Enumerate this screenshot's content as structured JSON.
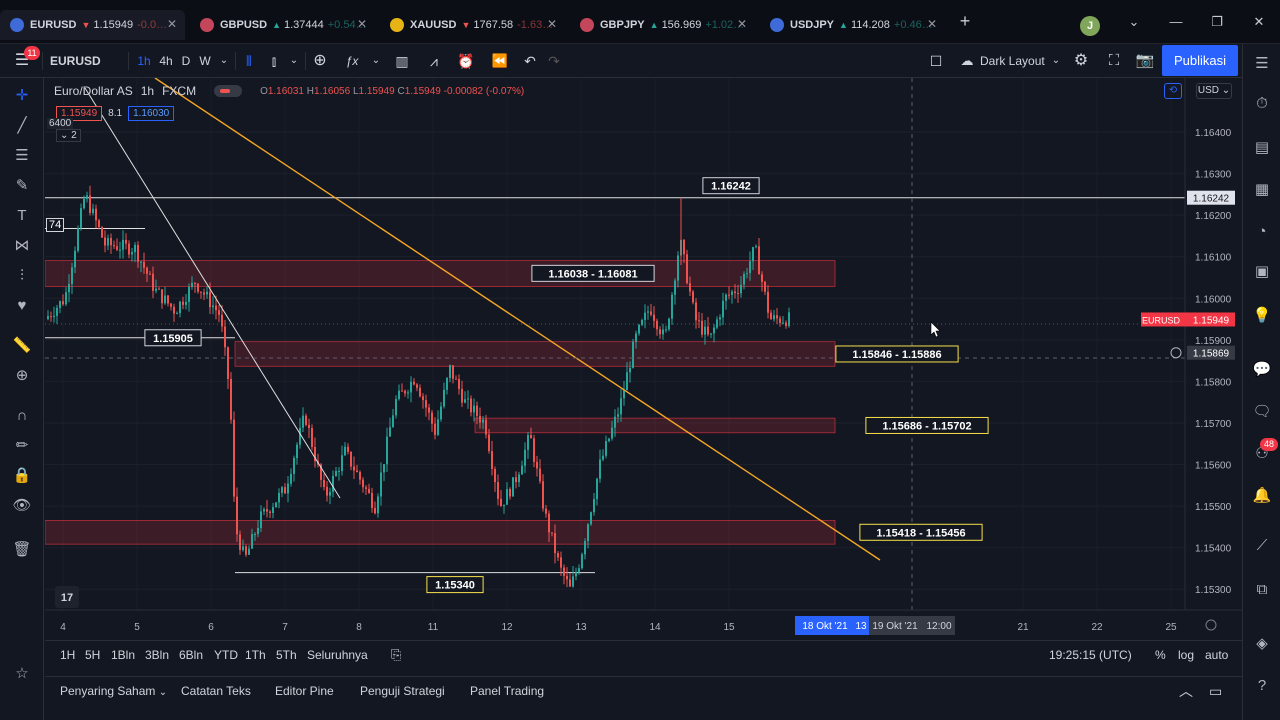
{
  "browser": {
    "tabs": [
      {
        "symbol": "EURUSD",
        "direction": "down",
        "price": "1.15949",
        "change": "-0.0…",
        "active": true,
        "color": "#3f6bd8"
      },
      {
        "symbol": "GBPUSD",
        "direction": "up",
        "price": "1.37444",
        "change": "+0.54…",
        "active": false,
        "color": "#c4465a"
      },
      {
        "symbol": "XAUUSD",
        "direction": "down",
        "price": "1767.58",
        "change": "-1.63…",
        "active": false,
        "color": "#e7b416"
      },
      {
        "symbol": "GBPJPY",
        "direction": "up",
        "price": "156.969",
        "change": "+1.02…",
        "active": false,
        "color": "#c4465a"
      },
      {
        "symbol": "USDJPY",
        "direction": "up",
        "price": "114.208",
        "change": "+0.46…",
        "active": false,
        "color": "#3f6bd8"
      }
    ],
    "avatar_initial": "J"
  },
  "toolbar": {
    "menu_badge": "11",
    "symbol": "EURUSD",
    "intervals": [
      "1h",
      "4h",
      "D",
      "W"
    ],
    "active_interval": "1h",
    "layout_name": "Dark Layout",
    "publish_label": "Publikasi"
  },
  "legend": {
    "title": "Euro/Dollar AS",
    "interval": "1h",
    "source": "FXCM",
    "ohlc": [
      {
        "label": "O",
        "value": "1.16031"
      },
      {
        "label": "H",
        "value": "1.16056"
      },
      {
        "label": "L",
        "value": "1.15949"
      },
      {
        "label": "C",
        "value": "1.15949"
      },
      {
        "label": "",
        "value": "-0.00082 (-0.07%)"
      }
    ],
    "bid": "1.15949",
    "spread": "8.1",
    "ask": "1.16030",
    "collapse_count": "2",
    "partial_label_1": "6400",
    "partial_label_2": "74"
  },
  "price_axis": {
    "currency": "USD",
    "ticks": [
      "1.16400",
      "1.16300",
      "1.16200",
      "1.16100",
      "1.16000",
      "1.15900",
      "1.15800",
      "1.15700",
      "1.15600",
      "1.15500",
      "1.15400",
      "1.15300"
    ],
    "current_symbol": "EURUSD",
    "current_price": "1.15949",
    "line_price": "1.16242",
    "crosshair_price": "1.15869"
  },
  "time_axis": {
    "ticks": [
      "4",
      "5",
      "6",
      "7",
      "8",
      "11",
      "12",
      "13",
      "14",
      "15",
      "21",
      "22",
      "25"
    ],
    "highlight_left": "18 Okt '21",
    "highlight_left_extra": "13",
    "highlight_right": "19 Okt '21",
    "highlight_time": "12:00"
  },
  "chart_data": {
    "type": "candlestick",
    "annotations": [
      "1.16242",
      "1.16038 - 1.16081",
      "1.15905",
      "1.15846 - 1.15886",
      "1.15686 - 1.15702",
      "1.15418 - 1.15456",
      "1.15340"
    ],
    "zones": [
      {
        "low": 1.16038,
        "high": 1.16081
      },
      {
        "low": 1.15846,
        "high": 1.15886
      },
      {
        "low": 1.15686,
        "high": 1.15702
      },
      {
        "low": 1.15418,
        "high": 1.15456
      }
    ],
    "horizontal_lines": [
      1.16242,
      1.15905,
      1.1534
    ],
    "ylim": [
      1.1525,
      1.1653
    ],
    "colors": {
      "up": "#26a69a",
      "down": "#ef5350",
      "trendline": "#f5a623",
      "zone": "#f23645"
    }
  },
  "bottom": {
    "ranges": [
      "1H",
      "5H",
      "1Bln",
      "3Bln",
      "6Bln",
      "YTD",
      "1Th",
      "5Th",
      "Seluruhnya"
    ],
    "clock": "19:25:15 (UTC)",
    "scale_options": [
      "%",
      "log",
      "auto"
    ],
    "panels": [
      "Penyaring Saham",
      "Catatan Teks",
      "Editor Pine",
      "Penguji Strategi",
      "Panel Trading"
    ],
    "right_badge": "48"
  }
}
